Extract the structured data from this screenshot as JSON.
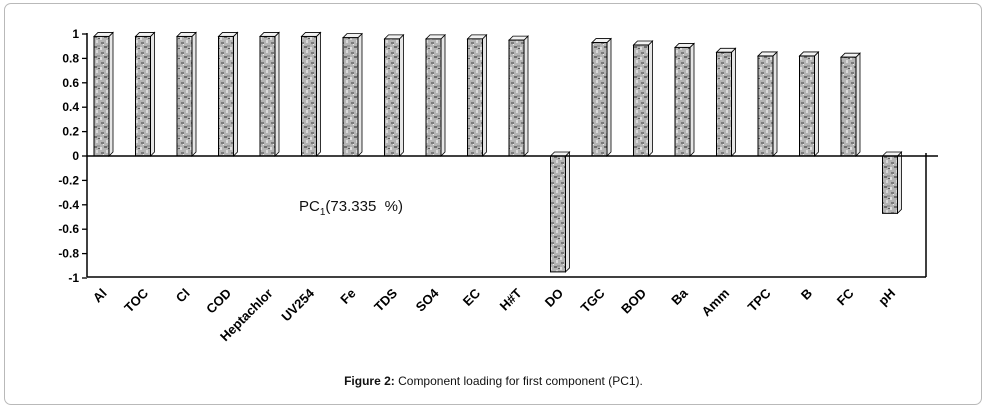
{
  "chart_data": {
    "type": "bar",
    "categories": [
      "Al",
      "TOC",
      "Cl",
      "COD",
      "Heptachlor",
      "UV254",
      "Fe",
      "TDS",
      "SO4",
      "EC",
      "H#T",
      "DO",
      "TGC",
      "BOD",
      "Ba",
      "Amm",
      "TPC",
      "B",
      "FC",
      "pH"
    ],
    "values": [
      0.98,
      0.98,
      0.98,
      0.98,
      0.98,
      0.98,
      0.97,
      0.96,
      0.96,
      0.96,
      0.95,
      -0.95,
      0.93,
      0.91,
      0.89,
      0.85,
      0.82,
      0.82,
      0.81,
      -0.47
    ],
    "ylim": [
      -1,
      1
    ],
    "yticks": [
      "-1",
      "-0.8",
      "-0.6",
      "-0.4",
      "-0.2",
      "0",
      "0.2",
      "0.4",
      "0.6",
      "0.8",
      "1"
    ],
    "annotation": {
      "prefix": "PC",
      "subscript": "1",
      "suffix": "(73.335  %)"
    },
    "grid": false,
    "legend": "none"
  },
  "caption": {
    "label": "Figure 2:",
    "text": " Component loading for first component (PC1)."
  },
  "colors": {
    "bar_light": "#d4d4d4",
    "bar_dark": "#6a6a6a",
    "axis": "#000000"
  }
}
